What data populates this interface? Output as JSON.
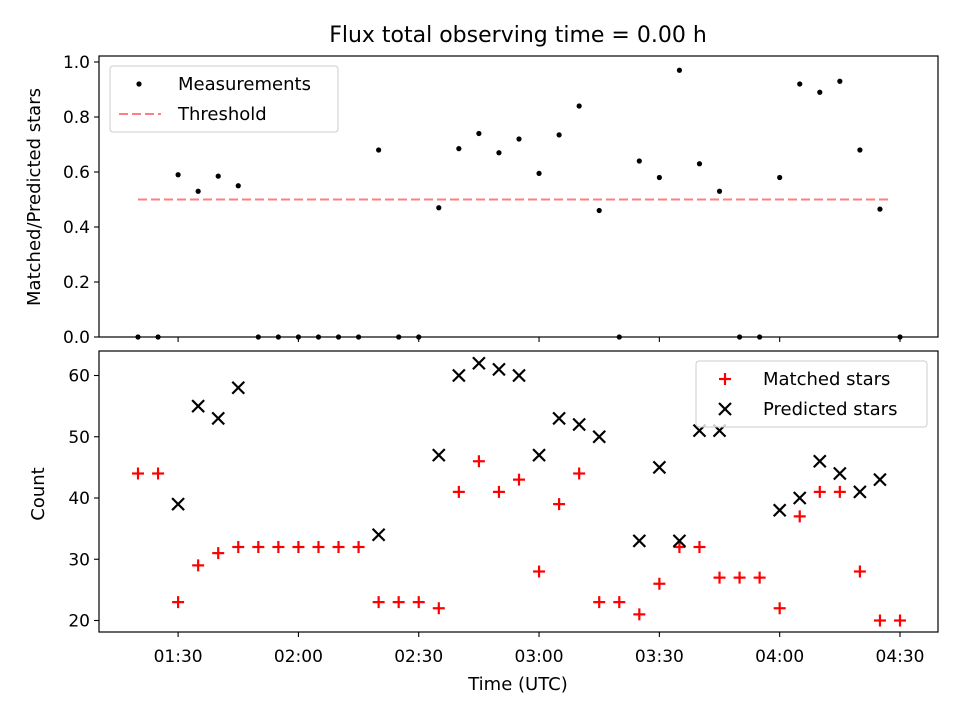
{
  "chart_data": [
    {
      "type": "scatter",
      "title": "Flux total observing time = 0.00 h",
      "xlabel": "",
      "ylabel": "Matched/Predicted stars",
      "ylim": [
        0,
        1.0
      ],
      "yticks": [
        "0.0",
        "0.2",
        "0.4",
        "0.6",
        "0.8",
        "1.0"
      ],
      "legend": {
        "placement": "top-left",
        "entries": [
          "Measurements",
          "Threshold"
        ]
      },
      "threshold": {
        "name": "Threshold",
        "value": 0.5,
        "color": "#ff7f7f",
        "x_start": "01:20",
        "x_end": "04:28"
      },
      "series": [
        {
          "name": "Measurements",
          "color": "#000000",
          "x": [
            "01:20",
            "01:25",
            "01:30",
            "01:35",
            "01:40",
            "01:45",
            "01:50",
            "01:55",
            "02:00",
            "02:05",
            "02:10",
            "02:15",
            "02:20",
            "02:25",
            "02:30",
            "02:35",
            "02:40",
            "02:45",
            "02:50",
            "02:55",
            "03:00",
            "03:05",
            "03:10",
            "03:15",
            "03:20",
            "03:25",
            "03:30",
            "03:35",
            "03:40",
            "03:45",
            "03:50",
            "03:55",
            "04:00",
            "04:05",
            "04:10",
            "04:15",
            "04:20",
            "04:25",
            "04:30"
          ],
          "y": [
            0,
            0,
            0.59,
            0.53,
            0.585,
            0.55,
            0,
            0,
            0,
            0,
            0,
            0,
            0.68,
            0,
            0,
            0.47,
            0.685,
            0.74,
            0.67,
            0.72,
            0.595,
            0.735,
            0.84,
            0.46,
            0,
            0.64,
            0.58,
            0.97,
            0.63,
            0.53,
            0,
            0,
            0.58,
            0.92,
            0.89,
            0.93,
            0.68,
            0.465,
            0
          ]
        }
      ]
    },
    {
      "type": "scatter",
      "title": "",
      "xlabel": "Time (UTC)",
      "ylabel": "Count",
      "ylim": [
        18,
        64
      ],
      "yticks": [
        "20",
        "30",
        "40",
        "50",
        "60"
      ],
      "xticks": [
        "01:30",
        "02:00",
        "02:30",
        "03:00",
        "03:30",
        "04:00",
        "04:30"
      ],
      "legend": {
        "placement": "top-right",
        "entries": [
          "Matched stars",
          "Predicted stars"
        ]
      },
      "series": [
        {
          "name": "Matched stars",
          "marker": "+",
          "color": "#ff0000",
          "x": [
            "01:20",
            "01:25",
            "01:30",
            "01:35",
            "01:40",
            "01:45",
            "01:50",
            "01:55",
            "02:00",
            "02:05",
            "02:10",
            "02:15",
            "02:20",
            "02:25",
            "02:30",
            "02:35",
            "02:40",
            "02:45",
            "02:50",
            "02:55",
            "03:00",
            "03:05",
            "03:10",
            "03:15",
            "03:20",
            "03:25",
            "03:30",
            "03:35",
            "03:40",
            "03:45",
            "03:50",
            "03:55",
            "04:00",
            "04:05",
            "04:10",
            "04:15",
            "04:20",
            "04:25",
            "04:30"
          ],
          "y": [
            44,
            44,
            23,
            29,
            31,
            32,
            32,
            32,
            32,
            32,
            32,
            32,
            23,
            23,
            23,
            22,
            41,
            46,
            41,
            43,
            28,
            39,
            44,
            23,
            23,
            21,
            26,
            32,
            32,
            27,
            27,
            27,
            22,
            37,
            41,
            41,
            28,
            20,
            20
          ]
        },
        {
          "name": "Predicted stars",
          "marker": "x",
          "color": "#000000",
          "x": [
            "01:30",
            "01:35",
            "01:40",
            "01:45",
            "02:20",
            "02:35",
            "02:40",
            "02:45",
            "02:50",
            "02:55",
            "03:00",
            "03:05",
            "03:10",
            "03:15",
            "03:25",
            "03:30",
            "03:35",
            "03:40",
            "03:45",
            "04:00",
            "04:05",
            "04:10",
            "04:15",
            "04:20",
            "04:25"
          ],
          "y": [
            39,
            55,
            53,
            58,
            34,
            47,
            60,
            62,
            61,
            60,
            47,
            53,
            52,
            50,
            33,
            45,
            33,
            51,
            51,
            38,
            40,
            46,
            44,
            41,
            43
          ]
        }
      ]
    }
  ]
}
